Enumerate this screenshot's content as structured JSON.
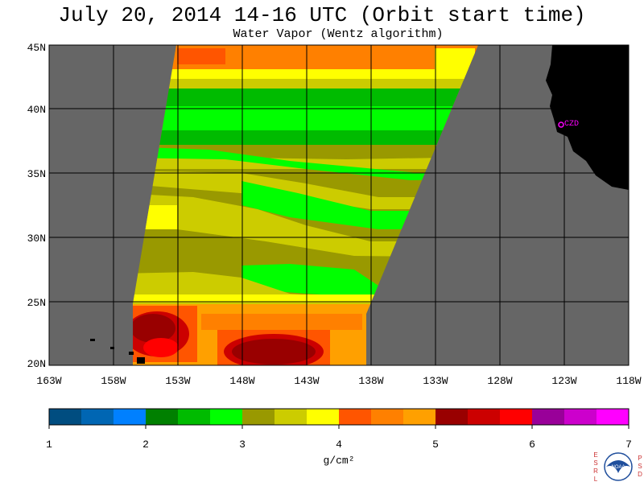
{
  "title": "July 20, 2014  14-16 UTC  (Orbit start time)",
  "subtitle": "Water Vapor (Wentz algorithm)",
  "map": {
    "lat_labels": [
      "45N",
      "40N",
      "35N",
      "30N",
      "25N",
      "20N"
    ],
    "lon_labels": [
      "163W",
      "158W",
      "153W",
      "148W",
      "143W",
      "138W",
      "133W",
      "128W",
      "123W",
      "118W"
    ],
    "station_label": "CZD",
    "colors": {
      "nodata": "#666666",
      "land": "#000000",
      "grid": "#000000",
      "station": "#ff00ff"
    }
  },
  "colorbar": {
    "tick_labels": [
      "1",
      "2",
      "3",
      "4",
      "5",
      "6",
      "7"
    ],
    "unit_label": "g/cm²",
    "colors": [
      "#004d80",
      "#0066b3",
      "#0080ff",
      "#008000",
      "#00bb00",
      "#00ff00",
      "#999900",
      "#cccc00",
      "#ffff00",
      "#ff5500",
      "#ff8000",
      "#ffa000",
      "#990000",
      "#cc0000",
      "#ff0000",
      "#990099",
      "#cc00cc",
      "#ff00ff"
    ]
  },
  "logo": {
    "text": "NOAA",
    "left_letters": [
      "E",
      "S",
      "R",
      "L"
    ],
    "right_letters": [
      "P",
      "S",
      "D"
    ]
  }
}
